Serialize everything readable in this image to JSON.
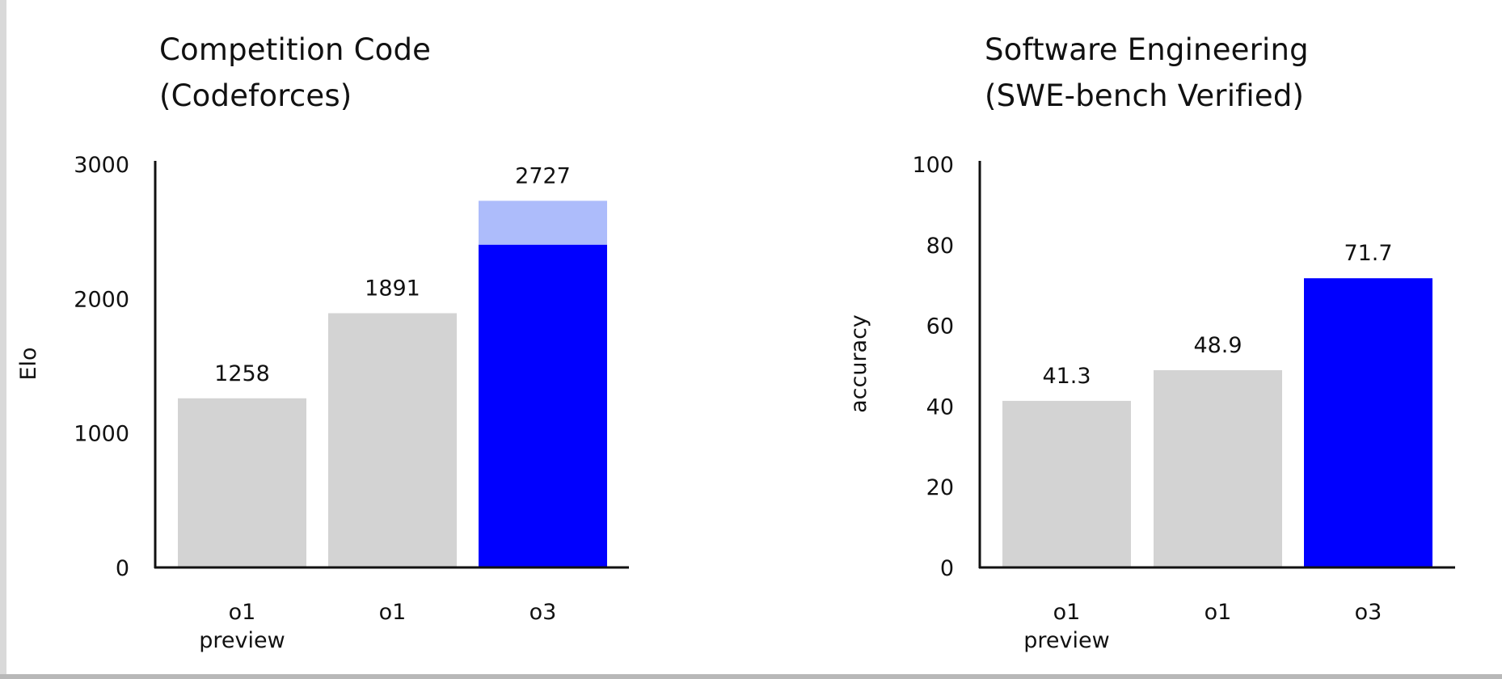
{
  "colors": {
    "gray_bar": "#d3d3d3",
    "highlight_bar": "#0000ff",
    "highlight_light": "#adbcfb",
    "axis": "#111111"
  },
  "chart_data": [
    {
      "type": "bar",
      "title_lines": [
        "Competition Code",
        "(Codeforces)"
      ],
      "xlabel": "",
      "ylabel": "Elo",
      "ylim": [
        0,
        3000
      ],
      "yticks": [
        0,
        1000,
        2000,
        3000
      ],
      "categories": [
        [
          "o1",
          "preview"
        ],
        [
          "o1"
        ],
        [
          "o3"
        ]
      ],
      "values": [
        1258,
        1891,
        2727
      ],
      "value_labels": [
        "1258",
        "1891",
        "2727"
      ],
      "stacked_base": [
        null,
        null,
        2400
      ],
      "bar_colors": [
        "gray_bar",
        "gray_bar",
        "highlight_bar"
      ],
      "grid": false,
      "legend": "none"
    },
    {
      "type": "bar",
      "title_lines": [
        "Software Engineering",
        "(SWE-bench Verified)"
      ],
      "xlabel": "",
      "ylabel": "accuracy",
      "ylim": [
        0,
        100
      ],
      "yticks": [
        0,
        20,
        40,
        60,
        80,
        100
      ],
      "categories": [
        [
          "o1",
          "preview"
        ],
        [
          "o1"
        ],
        [
          "o3"
        ]
      ],
      "values": [
        41.3,
        48.9,
        71.7
      ],
      "value_labels": [
        "41.3",
        "48.9",
        "71.7"
      ],
      "bar_colors": [
        "gray_bar",
        "gray_bar",
        "highlight_bar"
      ],
      "grid": false,
      "legend": "none"
    }
  ]
}
